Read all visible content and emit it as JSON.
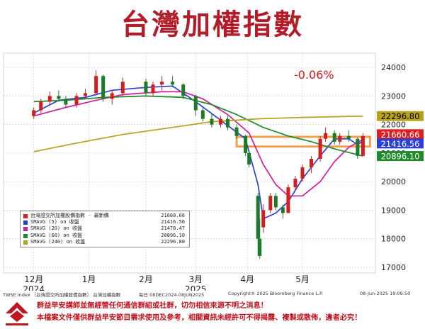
{
  "title": "台灣加權指數",
  "change_label": "-0.06%",
  "chart_data": {
    "type": "line",
    "title": "台灣加權指數",
    "xlabel": "",
    "ylabel": "",
    "ylim": [
      16800,
      24500
    ],
    "y_ticks": [
      17000,
      18000,
      19000,
      20000,
      21000,
      22000,
      23000,
      24000
    ],
    "x_ticks": [
      {
        "label": "12月",
        "date": "2024-12-02"
      },
      {
        "label": "1月",
        "date": "2025-01-02"
      },
      {
        "label": "2月",
        "date": "2025-02-03"
      },
      {
        "label": "3月",
        "date": "2025-03-03"
      },
      {
        "label": "4月",
        "date": "2025-04-01"
      },
      {
        "label": "5月",
        "date": "2025-05-02"
      }
    ],
    "year_labels": [
      {
        "label": "2024",
        "date": "2024-12-02"
      },
      {
        "label": "2025",
        "date": "2025-03-03"
      }
    ],
    "grid": true,
    "candles": [
      {
        "date": "2024-12-02",
        "o": 22300,
        "h": 22600,
        "l": 22200,
        "c": 22500
      },
      {
        "date": "2024-12-06",
        "o": 22500,
        "h": 22900,
        "l": 22400,
        "c": 22800
      },
      {
        "date": "2024-12-11",
        "o": 22800,
        "h": 23150,
        "l": 22700,
        "c": 23000
      },
      {
        "date": "2024-12-16",
        "o": 23000,
        "h": 23200,
        "l": 22800,
        "c": 22900
      },
      {
        "date": "2024-12-20",
        "o": 22900,
        "h": 23000,
        "l": 22600,
        "c": 22700
      },
      {
        "date": "2024-12-26",
        "o": 22700,
        "h": 23100,
        "l": 22600,
        "c": 23000
      },
      {
        "date": "2024-12-31",
        "o": 23000,
        "h": 23250,
        "l": 22900,
        "c": 23100
      },
      {
        "date": "2025-01-06",
        "o": 23100,
        "h": 23900,
        "l": 23000,
        "c": 23700
      },
      {
        "date": "2025-01-10",
        "o": 23700,
        "h": 23750,
        "l": 22800,
        "c": 22900
      },
      {
        "date": "2025-01-15",
        "o": 22900,
        "h": 23200,
        "l": 22700,
        "c": 23100
      },
      {
        "date": "2025-01-21",
        "o": 23100,
        "h": 23650,
        "l": 23000,
        "c": 23500
      },
      {
        "date": "2025-02-03",
        "o": 23500,
        "h": 23600,
        "l": 23000,
        "c": 23100
      },
      {
        "date": "2025-02-07",
        "o": 23100,
        "h": 23500,
        "l": 23000,
        "c": 23400
      },
      {
        "date": "2025-02-12",
        "o": 23400,
        "h": 23700,
        "l": 23200,
        "c": 23500
      },
      {
        "date": "2025-02-18",
        "o": 23500,
        "h": 23700,
        "l": 23300,
        "c": 23400
      },
      {
        "date": "2025-02-24",
        "o": 23400,
        "h": 23450,
        "l": 22900,
        "c": 23000
      },
      {
        "date": "2025-03-03",
        "o": 23000,
        "h": 23050,
        "l": 22300,
        "c": 22500
      },
      {
        "date": "2025-03-07",
        "o": 22500,
        "h": 22600,
        "l": 22100,
        "c": 22200
      },
      {
        "date": "2025-03-12",
        "o": 22200,
        "h": 22400,
        "l": 21900,
        "c": 22000
      },
      {
        "date": "2025-03-17",
        "o": 22000,
        "h": 22300,
        "l": 21900,
        "c": 22200
      },
      {
        "date": "2025-03-21",
        "o": 22200,
        "h": 22300,
        "l": 21800,
        "c": 21900
      },
      {
        "date": "2025-03-26",
        "o": 21900,
        "h": 22000,
        "l": 21500,
        "c": 21600
      },
      {
        "date": "2025-03-31",
        "o": 21600,
        "h": 21650,
        "l": 20900,
        "c": 21000
      },
      {
        "date": "2025-04-02",
        "o": 21000,
        "h": 21100,
        "l": 20500,
        "c": 20600
      },
      {
        "date": "2025-04-07",
        "o": 19500,
        "h": 19600,
        "l": 17400,
        "c": 18000
      },
      {
        "date": "2025-04-08",
        "o": 18000,
        "h": 18700,
        "l": 17300,
        "c": 17400
      },
      {
        "date": "2025-04-10",
        "o": 18400,
        "h": 19200,
        "l": 18200,
        "c": 19000
      },
      {
        "date": "2025-04-14",
        "o": 19000,
        "h": 19600,
        "l": 18900,
        "c": 19500
      },
      {
        "date": "2025-04-17",
        "o": 19500,
        "h": 19600,
        "l": 19000,
        "c": 19100
      },
      {
        "date": "2025-04-21",
        "o": 19100,
        "h": 19200,
        "l": 18700,
        "c": 18900
      },
      {
        "date": "2025-04-24",
        "o": 18900,
        "h": 19900,
        "l": 18900,
        "c": 19800
      },
      {
        "date": "2025-04-28",
        "o": 19800,
        "h": 20200,
        "l": 19700,
        "c": 20100
      },
      {
        "date": "2025-05-02",
        "o": 20100,
        "h": 20600,
        "l": 20000,
        "c": 20500
      },
      {
        "date": "2025-05-07",
        "o": 20500,
        "h": 20900,
        "l": 20300,
        "c": 20800
      },
      {
        "date": "2025-05-12",
        "o": 20800,
        "h": 21600,
        "l": 20700,
        "c": 21500
      },
      {
        "date": "2025-05-15",
        "o": 21500,
        "h": 21900,
        "l": 21400,
        "c": 21700
      },
      {
        "date": "2025-05-20",
        "o": 21700,
        "h": 21800,
        "l": 21300,
        "c": 21400
      },
      {
        "date": "2025-05-23",
        "o": 21400,
        "h": 21700,
        "l": 21300,
        "c": 21600
      },
      {
        "date": "2025-05-28",
        "o": 21600,
        "h": 21800,
        "l": 21400,
        "c": 21500
      },
      {
        "date": "2025-06-02",
        "o": 21500,
        "h": 21550,
        "l": 20800,
        "c": 20900
      },
      {
        "date": "2025-06-05",
        "o": 20900,
        "h": 21700,
        "l": 20900,
        "c": 21600
      }
    ],
    "series": [
      {
        "name": "台灣證交所加權股價指數 - 最新價",
        "legend_value": "21660.66",
        "color": "#e02020",
        "points": []
      },
      {
        "name": "SMAVG (5)  on 收盤",
        "legend_value": "21416.56",
        "color": "#2b3fd6",
        "points": [
          {
            "date": "2024-12-02",
            "y": 22400
          },
          {
            "date": "2024-12-16",
            "y": 22850
          },
          {
            "date": "2024-12-31",
            "y": 22950
          },
          {
            "date": "2025-01-15",
            "y": 23200
          },
          {
            "date": "2025-02-03",
            "y": 23300
          },
          {
            "date": "2025-02-18",
            "y": 23350
          },
          {
            "date": "2025-03-03",
            "y": 22800
          },
          {
            "date": "2025-03-17",
            "y": 22150
          },
          {
            "date": "2025-03-31",
            "y": 21500
          },
          {
            "date": "2025-04-07",
            "y": 19900
          },
          {
            "date": "2025-04-10",
            "y": 18700
          },
          {
            "date": "2025-04-17",
            "y": 18900
          },
          {
            "date": "2025-04-24",
            "y": 19300
          },
          {
            "date": "2025-05-02",
            "y": 20100
          },
          {
            "date": "2025-05-12",
            "y": 20900
          },
          {
            "date": "2025-05-20",
            "y": 21500
          },
          {
            "date": "2025-05-28",
            "y": 21500
          },
          {
            "date": "2025-06-02",
            "y": 21300
          },
          {
            "date": "2025-06-05",
            "y": 21417
          }
        ]
      },
      {
        "name": "SMAVG (20)  on 收盤",
        "legend_value": "21478.47",
        "color": "#d020a0",
        "points": [
          {
            "date": "2024-12-02",
            "y": 22300
          },
          {
            "date": "2024-12-20",
            "y": 22600
          },
          {
            "date": "2025-01-06",
            "y": 22850
          },
          {
            "date": "2025-01-21",
            "y": 23050
          },
          {
            "date": "2025-02-12",
            "y": 23150
          },
          {
            "date": "2025-02-24",
            "y": 23150
          },
          {
            "date": "2025-03-07",
            "y": 22900
          },
          {
            "date": "2025-03-21",
            "y": 22350
          },
          {
            "date": "2025-04-02",
            "y": 21700
          },
          {
            "date": "2025-04-10",
            "y": 20600
          },
          {
            "date": "2025-04-17",
            "y": 19900
          },
          {
            "date": "2025-04-24",
            "y": 19500
          },
          {
            "date": "2025-05-02",
            "y": 19500
          },
          {
            "date": "2025-05-12",
            "y": 20000
          },
          {
            "date": "2025-05-20",
            "y": 20700
          },
          {
            "date": "2025-05-28",
            "y": 21200
          },
          {
            "date": "2025-06-05",
            "y": 21478
          }
        ]
      },
      {
        "name": "SMAVG (60)  on 收盤",
        "legend_value": "20896.10",
        "color": "#1f8a2c",
        "points": [
          {
            "date": "2024-12-02",
            "y": 22800
          },
          {
            "date": "2024-12-20",
            "y": 22850
          },
          {
            "date": "2025-01-10",
            "y": 22950
          },
          {
            "date": "2025-02-03",
            "y": 23000
          },
          {
            "date": "2025-02-24",
            "y": 22950
          },
          {
            "date": "2025-03-12",
            "y": 22700
          },
          {
            "date": "2025-03-26",
            "y": 22350
          },
          {
            "date": "2025-04-10",
            "y": 21900
          },
          {
            "date": "2025-04-24",
            "y": 21600
          },
          {
            "date": "2025-05-07",
            "y": 21400
          },
          {
            "date": "2025-05-20",
            "y": 21150
          },
          {
            "date": "2025-06-05",
            "y": 20896
          }
        ]
      },
      {
        "name": "SMAVG (240)  on 收盤",
        "legend_value": "22296.80",
        "color": "#b7a11c",
        "points": [
          {
            "date": "2024-12-02",
            "y": 21050
          },
          {
            "date": "2024-12-26",
            "y": 21350
          },
          {
            "date": "2025-01-21",
            "y": 21650
          },
          {
            "date": "2025-02-18",
            "y": 21900
          },
          {
            "date": "2025-03-12",
            "y": 22100
          },
          {
            "date": "2025-04-07",
            "y": 22200
          },
          {
            "date": "2025-05-02",
            "y": 22250
          },
          {
            "date": "2025-06-05",
            "y": 22297
          }
        ]
      }
    ],
    "price_labels": [
      {
        "value": "22296.80",
        "y": 22296.8,
        "bg": "#b7a11c",
        "fg": "#000000"
      },
      {
        "value": "21660.66",
        "y": 21660.66,
        "bg": "#e02020",
        "fg": "#ffffff"
      },
      {
        "value": "21416.56",
        "y": 21416.56,
        "bg": "#2b3fd6",
        "fg": "#ffffff"
      },
      {
        "value": "20896.10",
        "y": 20896.1,
        "bg": "#1f8a2c",
        "fg": "#ffffff"
      }
    ],
    "highlight_band": {
      "from": "2025-03-26",
      "to": "2025-06-09",
      "y_low": 21230,
      "y_high": 21570,
      "color": "#f0a050"
    }
  },
  "footer_meta": {
    "source": "TWSE Index （台灣證交所加權股價指數） 台灣加權指數",
    "range": "每日 08DEC2024-08JUN2025",
    "copyright": "Copyright® 2025 Bloomberg Finance L.P.",
    "timestamp": "08-Jun-2025  19:09:50"
  },
  "disclaimer": {
    "line1": "群益早安講師並無經營任何通信群組或社群，切勿相信來源不明之消息！",
    "line2": "本檔案文件僅供群益早安節目需求使用及參考，相關資訊未經許可不得揭露、複製或散佈，違者必究！"
  }
}
